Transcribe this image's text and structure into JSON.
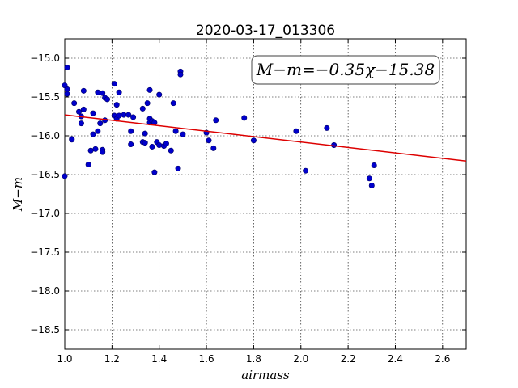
{
  "chart_data": {
    "type": "scatter",
    "title": "2020-03-17_013306",
    "xlabel": "airmass",
    "ylabel": "M−m",
    "xlim": [
      1.0,
      2.7
    ],
    "ylim": [
      -18.75,
      -14.75
    ],
    "x_ticks": [
      1.0,
      1.2,
      1.4,
      1.6,
      1.8,
      2.0,
      2.2,
      2.4,
      2.6
    ],
    "x_tick_labels": [
      "1.0",
      "1.2",
      "1.4",
      "1.6",
      "1.8",
      "2.0",
      "2.2",
      "2.4",
      "2.6"
    ],
    "y_ticks": [
      -15.0,
      -15.5,
      -16.0,
      -16.5,
      -17.0,
      -17.5,
      -18.0,
      -18.5
    ],
    "y_tick_labels": [
      "−15.0",
      "−15.5",
      "−16.0",
      "−16.5",
      "−17.0",
      "−17.5",
      "−18.0",
      "−18.5"
    ],
    "grid": true,
    "annotation": "M−m=−0.35χ−15.38",
    "fit": {
      "slope": -0.35,
      "intercept": -15.38,
      "color": "#dd0000"
    },
    "point_color": "#0000cc",
    "points": [
      [
        1.0,
        -16.52
      ],
      [
        1.0,
        -15.35
      ],
      [
        1.01,
        -15.12
      ],
      [
        1.01,
        -15.4
      ],
      [
        1.01,
        -15.46
      ],
      [
        1.03,
        -16.04
      ],
      [
        1.03,
        -16.05
      ],
      [
        1.04,
        -15.58
      ],
      [
        1.06,
        -15.69
      ],
      [
        1.07,
        -15.75
      ],
      [
        1.07,
        -15.84
      ],
      [
        1.08,
        -15.42
      ],
      [
        1.08,
        -15.66
      ],
      [
        1.1,
        -16.37
      ],
      [
        1.11,
        -16.19
      ],
      [
        1.12,
        -15.98
      ],
      [
        1.12,
        -15.71
      ],
      [
        1.13,
        -16.17
      ],
      [
        1.14,
        -15.94
      ],
      [
        1.14,
        -15.44
      ],
      [
        1.15,
        -15.84
      ],
      [
        1.16,
        -15.45
      ],
      [
        1.16,
        -16.18
      ],
      [
        1.16,
        -16.21
      ],
      [
        1.17,
        -15.51
      ],
      [
        1.17,
        -15.8
      ],
      [
        1.18,
        -15.53
      ],
      [
        1.21,
        -15.33
      ],
      [
        1.21,
        -15.74
      ],
      [
        1.22,
        -15.78
      ],
      [
        1.22,
        -15.6
      ],
      [
        1.23,
        -15.74
      ],
      [
        1.23,
        -15.44
      ],
      [
        1.25,
        -15.73
      ],
      [
        1.27,
        -15.73
      ],
      [
        1.28,
        -15.94
      ],
      [
        1.28,
        -16.11
      ],
      [
        1.29,
        -15.76
      ],
      [
        1.33,
        -15.65
      ],
      [
        1.33,
        -16.08
      ],
      [
        1.34,
        -15.97
      ],
      [
        1.34,
        -16.09
      ],
      [
        1.35,
        -15.58
      ],
      [
        1.36,
        -15.78
      ],
      [
        1.36,
        -15.41
      ],
      [
        1.36,
        -15.83
      ],
      [
        1.37,
        -16.14
      ],
      [
        1.37,
        -15.81
      ],
      [
        1.38,
        -15.83
      ],
      [
        1.38,
        -16.47
      ],
      [
        1.39,
        -16.08
      ],
      [
        1.4,
        -16.12
      ],
      [
        1.4,
        -15.47
      ],
      [
        1.42,
        -16.13
      ],
      [
        1.43,
        -16.1
      ],
      [
        1.45,
        -16.19
      ],
      [
        1.46,
        -15.58
      ],
      [
        1.47,
        -15.94
      ],
      [
        1.48,
        -16.42
      ],
      [
        1.49,
        -15.17
      ],
      [
        1.49,
        -15.21
      ],
      [
        1.5,
        -15.98
      ],
      [
        1.6,
        -15.96
      ],
      [
        1.61,
        -16.06
      ],
      [
        1.63,
        -16.16
      ],
      [
        1.64,
        -15.8
      ],
      [
        1.76,
        -15.77
      ],
      [
        1.8,
        -16.06
      ],
      [
        1.98,
        -15.94
      ],
      [
        2.02,
        -16.45
      ],
      [
        2.11,
        -15.9
      ],
      [
        2.14,
        -16.12
      ],
      [
        2.29,
        -16.55
      ],
      [
        2.3,
        -16.64
      ],
      [
        2.31,
        -16.38
      ]
    ]
  }
}
